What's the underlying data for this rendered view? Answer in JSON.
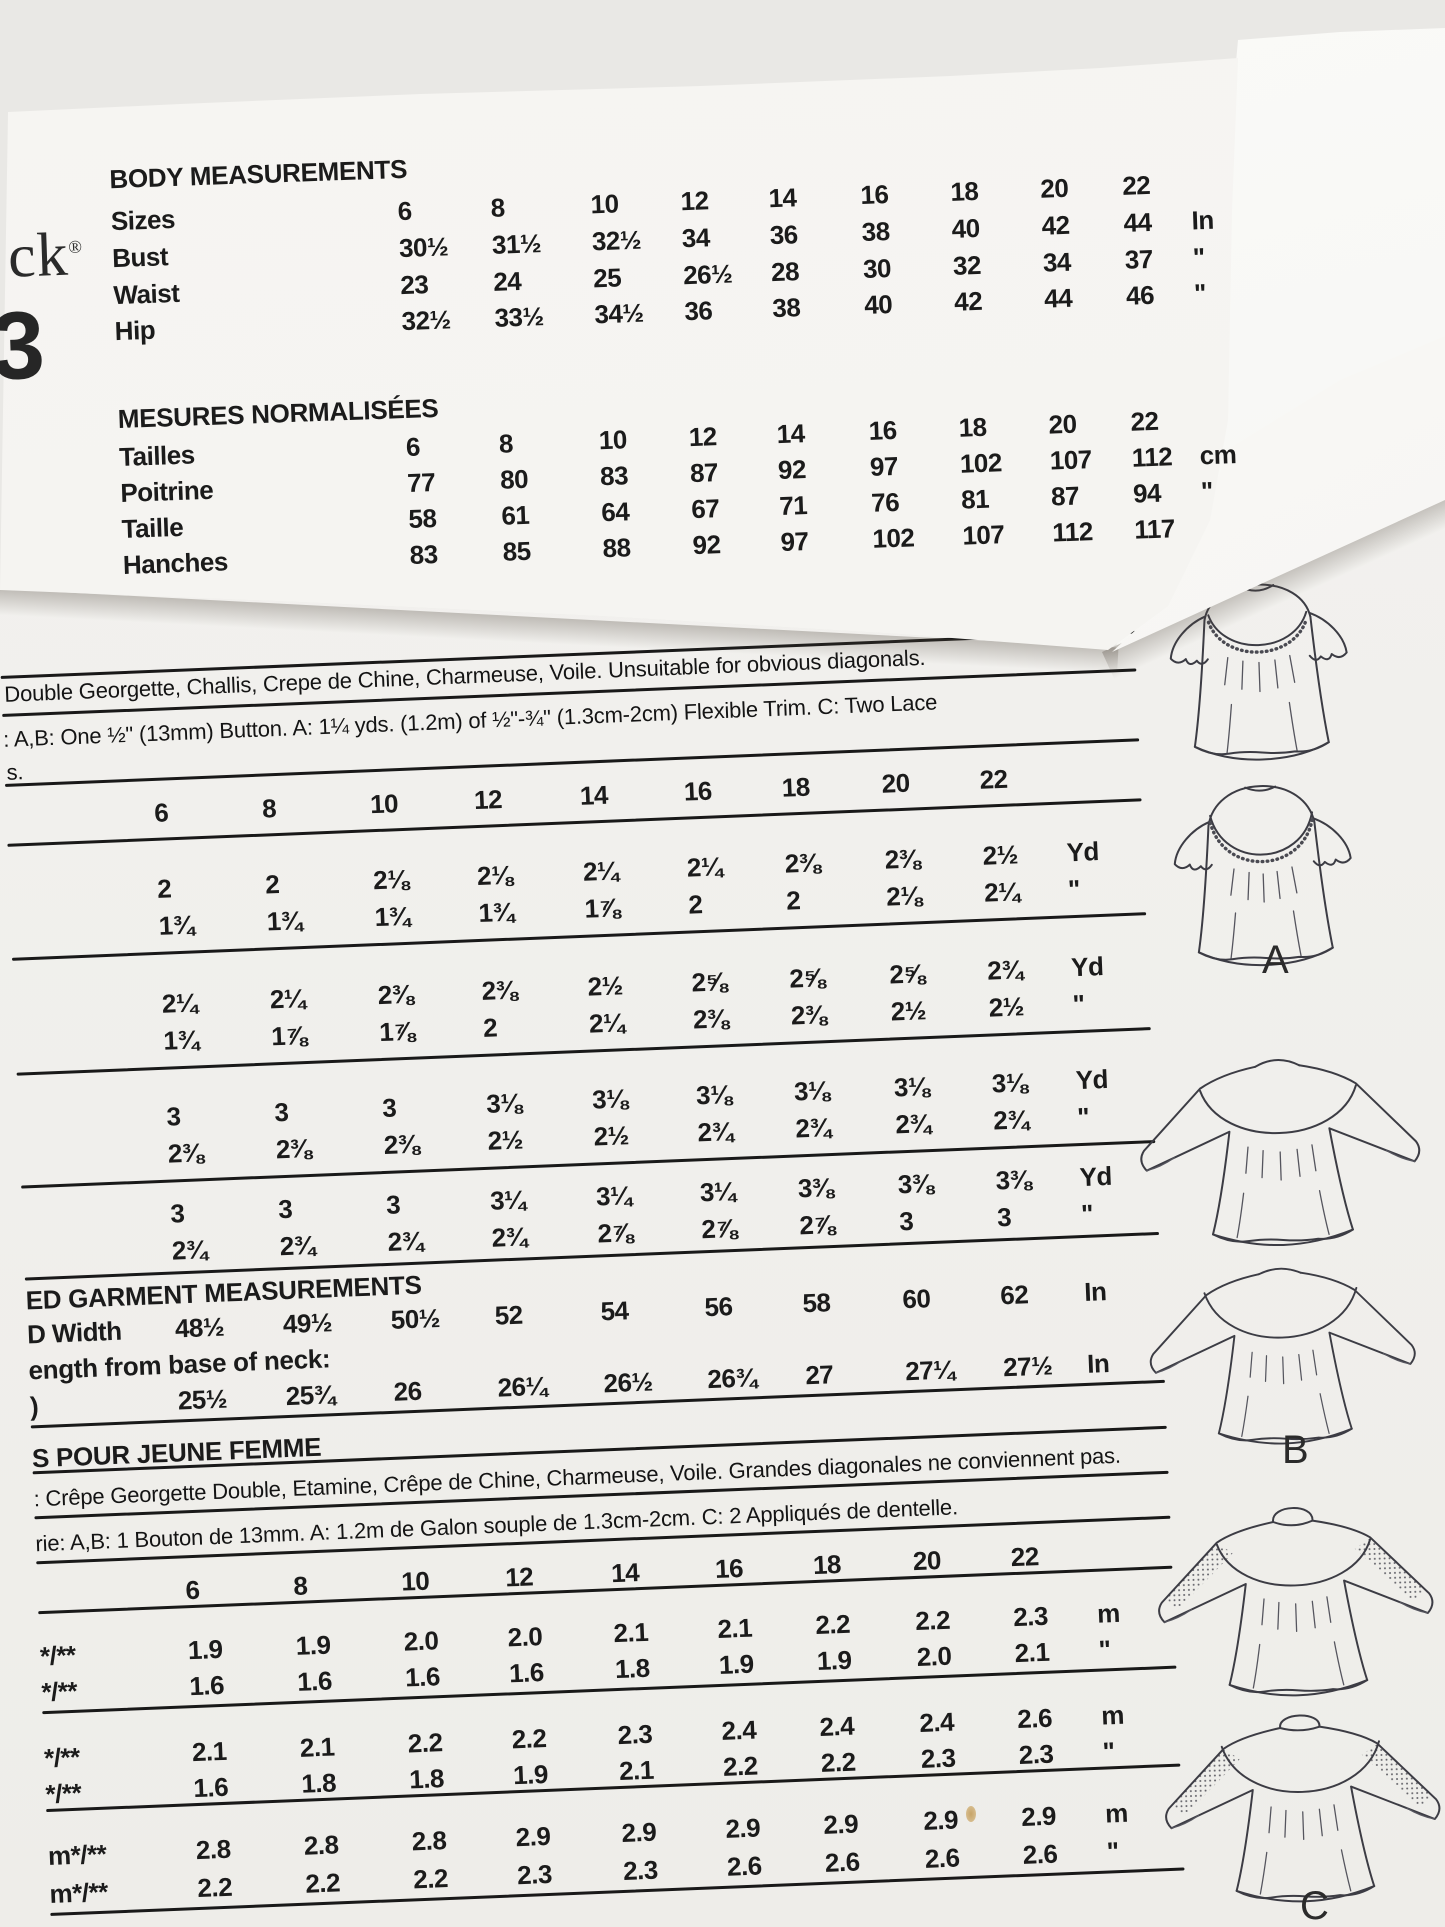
{
  "top_flap": {
    "brand_fragment": "ck",
    "registered_mark": "®",
    "number_fragment": "3",
    "body_measurements": {
      "title": "BODY MEASUREMENTS",
      "rows": [
        {
          "label": "Sizes",
          "values": [
            "6",
            "8",
            "10",
            "12",
            "14",
            "16",
            "18",
            "20",
            "22"
          ],
          "unit": ""
        },
        {
          "label": "Bust",
          "values": [
            "30½",
            "31½",
            "32½",
            "34",
            "36",
            "38",
            "40",
            "42",
            "44"
          ],
          "unit": "In"
        },
        {
          "label": "Waist",
          "values": [
            "23",
            "24",
            "25",
            "26½",
            "28",
            "30",
            "32",
            "34",
            "37"
          ],
          "unit": "\""
        },
        {
          "label": "Hip",
          "values": [
            "32½",
            "33½",
            "34½",
            "36",
            "38",
            "40",
            "42",
            "44",
            "46"
          ],
          "unit": "\""
        }
      ]
    },
    "mesures_normalisees": {
      "title": "MESURES NORMALISÉES",
      "rows": [
        {
          "label": "Tailles",
          "values": [
            "6",
            "8",
            "10",
            "12",
            "14",
            "16",
            "18",
            "20",
            "22"
          ],
          "unit": ""
        },
        {
          "label": "Poitrine",
          "values": [
            "77",
            "80",
            "83",
            "87",
            "92",
            "97",
            "102",
            "107",
            "112"
          ],
          "unit": "cm"
        },
        {
          "label": "Taille",
          "values": [
            "58",
            "61",
            "64",
            "67",
            "71",
            "76",
            "81",
            "87",
            "94"
          ],
          "unit": "\""
        },
        {
          "label": "Hanches",
          "values": [
            "83",
            "85",
            "88",
            "92",
            "97",
            "102",
            "107",
            "112",
            "117"
          ],
          "unit": ""
        }
      ]
    }
  },
  "yardage_en": {
    "fabric_line": "Double Georgette, Challis, Crepe de Chine, Charmeuse, Voile. Unsuitable for obvious diagonals.",
    "notions_line": ": A,B: One ½\" (13mm) Button. A: 1¼ yds. (1.2m) of ½\"-¾\" (1.3cm-2cm) Flexible Trim. C: Two Lace",
    "notions_continuation": "s.",
    "sizes": [
      "6",
      "8",
      "10",
      "12",
      "14",
      "16",
      "18",
      "20",
      "22"
    ],
    "blocks": [
      {
        "rows": [
          {
            "values": [
              "2",
              "2",
              "2⅛",
              "2⅛",
              "2¼",
              "2¼",
              "2⅜",
              "2⅜",
              "2½"
            ],
            "unit": "Yd"
          },
          {
            "values": [
              "1¾",
              "1¾",
              "1¾",
              "1¾",
              "1⅞",
              "2",
              "2",
              "2⅛",
              "2¼"
            ],
            "unit": "\""
          }
        ]
      },
      {
        "rows": [
          {
            "values": [
              "2¼",
              "2¼",
              "2⅜",
              "2⅜",
              "2½",
              "2⅝",
              "2⅝",
              "2⅝",
              "2¾"
            ],
            "unit": "Yd"
          },
          {
            "values": [
              "1¾",
              "1⅞",
              "1⅞",
              "2",
              "2¼",
              "2⅜",
              "2⅜",
              "2½",
              "2½"
            ],
            "unit": "\""
          }
        ]
      },
      {
        "rows": [
          {
            "values": [
              "3",
              "3",
              "3",
              "3⅛",
              "3⅛",
              "3⅛",
              "3⅛",
              "3⅛",
              "3⅛"
            ],
            "unit": "Yd"
          },
          {
            "values": [
              "2⅜",
              "2⅜",
              "2⅜",
              "2½",
              "2½",
              "2¾",
              "2¾",
              "2¾",
              "2¾"
            ],
            "unit": "\""
          }
        ]
      },
      {
        "rows": [
          {
            "values": [
              "3",
              "3",
              "3",
              "3¼",
              "3¼",
              "3¼",
              "3⅜",
              "3⅜",
              "3⅜"
            ],
            "unit": "Yd"
          },
          {
            "values": [
              "2¾",
              "2¾",
              "2¾",
              "2¾",
              "2⅞",
              "2⅞",
              "2⅞",
              "3",
              "3"
            ],
            "unit": "\""
          }
        ]
      }
    ]
  },
  "garment_measurements": {
    "title_fragment": "ED GARMENT MEASUREMENTS",
    "width_label_fragment": "D Width",
    "width_values": [
      "48½",
      "49½",
      "50½",
      "52",
      "54",
      "56",
      "58",
      "60",
      "62"
    ],
    "width_unit": "In",
    "length_label_fragment": "ength from base of neck:",
    "length_prefix": ")",
    "length_values": [
      "25½",
      "25¾",
      "26",
      "26¼",
      "26½",
      "26¾",
      "27",
      "27¼",
      "27½"
    ],
    "length_unit": "In"
  },
  "section_fr": {
    "title_fragment": "S POUR JEUNE FEMME",
    "fabric_line": ": Crêpe Georgette Double, Etamine, Crêpe de Chine, Charmeuse, Voile. Grandes diagonales ne conviennent pas.",
    "notions_line": "rie: A,B: 1 Bouton de 13mm. A: 1.2m de Galon souple de 1.3cm-2cm. C: 2 Appliqués de dentelle.",
    "sizes": [
      "6",
      "8",
      "10",
      "12",
      "14",
      "16",
      "18",
      "20",
      "22"
    ],
    "blocks": [
      {
        "rows": [
          {
            "label": "*/**",
            "values": [
              "1.9",
              "1.9",
              "2.0",
              "2.0",
              "2.1",
              "2.1",
              "2.2",
              "2.2",
              "2.3"
            ],
            "unit": "m"
          },
          {
            "label": "*/**",
            "values": [
              "1.6",
              "1.6",
              "1.6",
              "1.6",
              "1.8",
              "1.9",
              "1.9",
              "2.0",
              "2.1"
            ],
            "unit": "\""
          }
        ]
      },
      {
        "rows": [
          {
            "label": "*/**",
            "values": [
              "2.1",
              "2.1",
              "2.2",
              "2.2",
              "2.3",
              "2.4",
              "2.4",
              "2.4",
              "2.6"
            ],
            "unit": "m"
          },
          {
            "label": "*/**",
            "values": [
              "1.6",
              "1.8",
              "1.8",
              "1.9",
              "2.1",
              "2.2",
              "2.2",
              "2.3",
              "2.3"
            ],
            "unit": "\""
          }
        ]
      },
      {
        "rows": [
          {
            "label": "m*/**",
            "values": [
              "2.8",
              "2.8",
              "2.8",
              "2.9",
              "2.9",
              "2.9",
              "2.9",
              "2.9",
              "2.9"
            ],
            "unit": "m"
          },
          {
            "label": "m*/**",
            "values": [
              "2.2",
              "2.2",
              "2.2",
              "2.3",
              "2.3",
              "2.6",
              "2.6",
              "2.6",
              "2.6"
            ],
            "unit": "\""
          }
        ]
      }
    ]
  },
  "views": {
    "a": "A",
    "b": "B",
    "c": "C"
  }
}
